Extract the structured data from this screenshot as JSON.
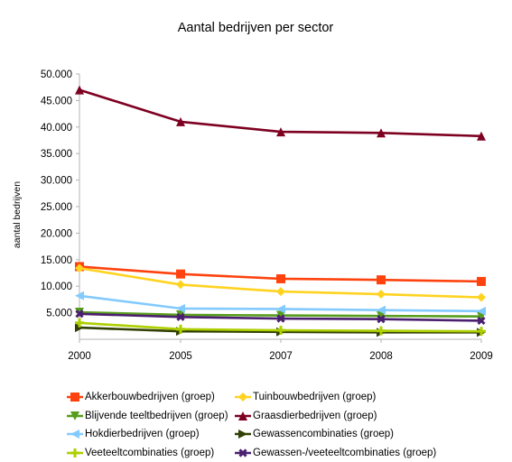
{
  "chart_data": {
    "type": "line",
    "title": "Aantal bedrijven per sector",
    "xlabel": "",
    "ylabel": "aantal bedrijven",
    "categories": [
      "2000",
      "2005",
      "2007",
      "2008",
      "2009"
    ],
    "ylim": [
      0,
      50000
    ],
    "yticks": [
      "5.000",
      "10.000",
      "15.000",
      "20.000",
      "25.000",
      "30.000",
      "35.000",
      "40.000",
      "45.000",
      "50.000"
    ],
    "grid": false,
    "legend_position": "bottom",
    "series": [
      {
        "name": "Akkerbouwbedrijven (groep)",
        "color": "#ff420e",
        "marker": "square",
        "values": [
          13700,
          12300,
          11400,
          11200,
          10900
        ]
      },
      {
        "name": "Tuinbouwbedrijven (groep)",
        "color": "#ffd320",
        "marker": "diamond",
        "values": [
          13400,
          10300,
          9000,
          8500,
          7900
        ]
      },
      {
        "name": "Blijvende teeltbedrijven (groep)",
        "color": "#579d1c",
        "marker": "triangle-down",
        "values": [
          5100,
          4600,
          4500,
          4400,
          4300
        ]
      },
      {
        "name": "Graasdierbedrijven (groep)",
        "color": "#7e0021",
        "marker": "triangle-up",
        "values": [
          47000,
          41000,
          39100,
          38900,
          38300
        ]
      },
      {
        "name": "Hokdierbedrijven (groep)",
        "color": "#83caff",
        "marker": "triangle-left",
        "values": [
          8200,
          5800,
          5700,
          5500,
          5300
        ]
      },
      {
        "name": "Gewassencombinaties (groep)",
        "color": "#314004",
        "marker": "triangle-right",
        "values": [
          2200,
          1500,
          1400,
          1300,
          1300
        ]
      },
      {
        "name": "Veeteeltcombinaties (groep)",
        "color": "#aecf00",
        "marker": "cross",
        "values": [
          3100,
          1900,
          1700,
          1600,
          1500
        ]
      },
      {
        "name": "Gewassen-/veeteeltcombinaties (groep)",
        "color": "#4b1f6f",
        "marker": "star",
        "values": [
          4800,
          4200,
          3900,
          3800,
          3500
        ]
      }
    ]
  }
}
